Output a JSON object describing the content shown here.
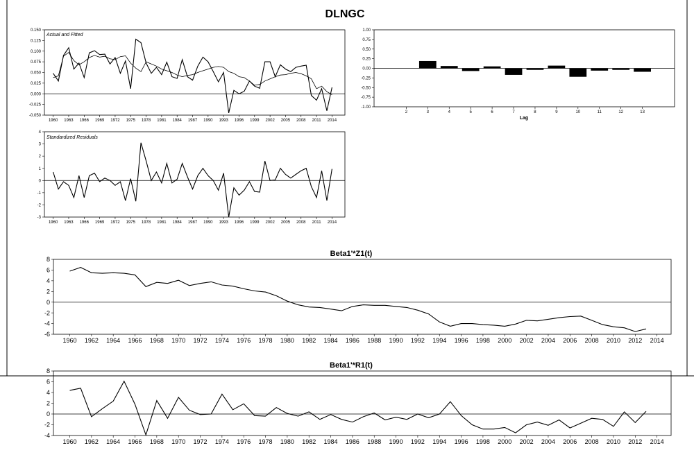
{
  "title": "DLNGC",
  "chart_data": [
    {
      "id": "actual_fitted",
      "type": "line",
      "label": "Actual and Fitted",
      "x_ticks": [
        "1960",
        "1963",
        "1966",
        "1969",
        "1972",
        "1975",
        "1978",
        "1981",
        "1984",
        "1987",
        "1990",
        "1993",
        "1996",
        "1999",
        "2002",
        "2005",
        "2008",
        "2011",
        "2014"
      ],
      "y_ticks": [
        "0.150",
        "0.125",
        "0.100",
        "0.075",
        "0.050",
        "0.025",
        "0.000",
        "-0.025",
        "-0.050"
      ],
      "ylim": [
        -0.05,
        0.15
      ],
      "xlim": [
        1958.3,
        2016.5
      ],
      "x": [
        1960,
        1961,
        1962,
        1963,
        1964,
        1965,
        1966,
        1967,
        1968,
        1969,
        1970,
        1971,
        1972,
        1973,
        1974,
        1975,
        1976,
        1977,
        1978,
        1979,
        1980,
        1981,
        1982,
        1983,
        1984,
        1985,
        1986,
        1987,
        1988,
        1989,
        1990,
        1991,
        1992,
        1993,
        1994,
        1995,
        1996,
        1997,
        1998,
        1999,
        2000,
        2001,
        2002,
        2003,
        2004,
        2005,
        2006,
        2007,
        2008,
        2009,
        2010,
        2011,
        2012,
        2013,
        2014
      ],
      "series": [
        {
          "values": [
            0.048,
            0.03,
            0.09,
            0.108,
            0.058,
            0.072,
            0.038,
            0.096,
            0.101,
            0.092,
            0.093,
            0.07,
            0.085,
            0.048,
            0.077,
            0.012,
            0.128,
            0.12,
            0.072,
            0.048,
            0.062,
            0.045,
            0.074,
            0.04,
            0.036,
            0.08,
            0.04,
            0.032,
            0.065,
            0.086,
            0.075,
            0.052,
            0.028,
            0.05,
            -0.045,
            0.008,
            0.0,
            0.006,
            0.03,
            0.018,
            0.013,
            0.075,
            0.075,
            0.04,
            0.068,
            0.058,
            0.052,
            0.062,
            0.065,
            0.067,
            -0.004,
            -0.015,
            0.012,
            -0.04,
            0.015
          ]
        },
        {
          "values": [
            0.038,
            0.042,
            0.088,
            0.097,
            0.078,
            0.068,
            0.075,
            0.085,
            0.09,
            0.086,
            0.088,
            0.082,
            0.08,
            0.087,
            0.089,
            0.072,
            0.06,
            0.052,
            0.075,
            0.07,
            0.065,
            0.058,
            0.054,
            0.05,
            0.044,
            0.04,
            0.043,
            0.045,
            0.05,
            0.054,
            0.058,
            0.062,
            0.064,
            0.062,
            0.052,
            0.048,
            0.04,
            0.038,
            0.03,
            0.02,
            0.022,
            0.03,
            0.035,
            0.04,
            0.044,
            0.045,
            0.048,
            0.05,
            0.047,
            0.042,
            0.035,
            0.012,
            0.018,
            0.005,
            -0.002
          ]
        }
      ]
    },
    {
      "id": "std_resid",
      "type": "line",
      "label": "Standardized Residuals",
      "x_ticks": [
        "1960",
        "1963",
        "1966",
        "1969",
        "1972",
        "1975",
        "1978",
        "1981",
        "1984",
        "1987",
        "1990",
        "1993",
        "1996",
        "1999",
        "2002",
        "2005",
        "2008",
        "2011",
        "2014"
      ],
      "y_ticks": [
        "4",
        "3",
        "2",
        "1",
        "0",
        "-1",
        "-2",
        "-3"
      ],
      "ylim": [
        -3,
        4
      ],
      "xlim": [
        1958.3,
        2016.5
      ],
      "x": [
        1960,
        1961,
        1962,
        1963,
        1964,
        1965,
        1966,
        1967,
        1968,
        1969,
        1970,
        1971,
        1972,
        1973,
        1974,
        1975,
        1976,
        1977,
        1978,
        1979,
        1980,
        1981,
        1982,
        1983,
        1984,
        1985,
        1986,
        1987,
        1988,
        1989,
        1990,
        1991,
        1992,
        1993,
        1994,
        1995,
        1996,
        1997,
        1998,
        1999,
        2000,
        2001,
        2002,
        2003,
        2004,
        2005,
        2006,
        2007,
        2008,
        2009,
        2010,
        2011,
        2012,
        2013,
        2014
      ],
      "values": [
        0.7,
        -0.7,
        -0.1,
        -0.4,
        -1.4,
        0.4,
        -1.4,
        0.4,
        0.6,
        -0.1,
        0.2,
        0.0,
        -0.4,
        -0.1,
        -1.65,
        0.15,
        -1.7,
        3.1,
        1.6,
        0.0,
        0.7,
        -0.2,
        1.4,
        -0.2,
        0.1,
        1.4,
        0.3,
        -0.7,
        0.4,
        1.0,
        0.4,
        0.0,
        -0.8,
        0.6,
        -3.0,
        -0.6,
        -1.2,
        -0.8,
        -0.1,
        -0.9,
        -0.95,
        1.6,
        0.0,
        0.05,
        1.0,
        0.5,
        0.2,
        0.5,
        0.8,
        1.0,
        -0.5,
        -1.4,
        0.8,
        -1.65,
        0.95
      ]
    },
    {
      "id": "acf",
      "type": "bar",
      "xlabel": "Lag",
      "categories": [
        "2",
        "3",
        "4",
        "5",
        "6",
        "7",
        "8",
        "9",
        "10",
        "11",
        "12",
        "13"
      ],
      "values": [
        0.0,
        0.19,
        0.06,
        -0.07,
        0.05,
        -0.17,
        -0.04,
        0.07,
        -0.22,
        -0.06,
        -0.04,
        -0.09
      ],
      "y_ticks": [
        "1.00",
        "0.75",
        "0.50",
        "0.25",
        "0.00",
        "-0.25",
        "-0.50",
        "-0.75",
        "-1.00"
      ],
      "ylim": [
        -1.0,
        1.0
      ]
    },
    {
      "id": "beta_z",
      "type": "line",
      "title": "Beta1'*Z1(t)",
      "x_ticks": [
        "1960",
        "1962",
        "1964",
        "1966",
        "1968",
        "1970",
        "1972",
        "1974",
        "1976",
        "1978",
        "1980",
        "1982",
        "1984",
        "1986",
        "1988",
        "1990",
        "1992",
        "1994",
        "1996",
        "1998",
        "2000",
        "2002",
        "2004",
        "2006",
        "2008",
        "2010",
        "2012",
        "2014"
      ],
      "y_ticks": [
        "8",
        "6",
        "4",
        "2",
        "0",
        "-2",
        "-4",
        "-6"
      ],
      "ylim": [
        -6,
        8
      ],
      "xlim": [
        1958.5,
        2015.3
      ],
      "x": [
        1960,
        1961,
        1962,
        1963,
        1964,
        1965,
        1966,
        1967,
        1968,
        1969,
        1970,
        1971,
        1972,
        1973,
        1974,
        1975,
        1976,
        1977,
        1978,
        1979,
        1980,
        1981,
        1982,
        1983,
        1984,
        1985,
        1986,
        1987,
        1988,
        1989,
        1990,
        1991,
        1992,
        1993,
        1994,
        1995,
        1996,
        1997,
        1998,
        1999,
        2000,
        2001,
        2002,
        2003,
        2004,
        2005,
        2006,
        2007,
        2008,
        2009,
        2010,
        2011,
        2012,
        2013
      ],
      "values": [
        5.8,
        6.5,
        5.5,
        5.4,
        5.5,
        5.4,
        5.1,
        2.9,
        3.7,
        3.5,
        4.1,
        3.1,
        3.5,
        3.8,
        3.2,
        3.0,
        2.5,
        2.1,
        1.9,
        1.2,
        0.2,
        -0.5,
        -0.9,
        -1.0,
        -1.3,
        -1.6,
        -0.8,
        -0.5,
        -0.6,
        -0.6,
        -0.8,
        -1.0,
        -1.5,
        -2.2,
        -3.7,
        -4.5,
        -4.0,
        -4.0,
        -4.2,
        -4.3,
        -4.5,
        -4.1,
        -3.4,
        -3.5,
        -3.2,
        -2.9,
        -2.7,
        -2.6,
        -3.4,
        -4.2,
        -4.6,
        -4.8,
        -5.5,
        -5.0
      ]
    },
    {
      "id": "beta_r",
      "type": "line",
      "title": "Beta1'*R1(t)",
      "x_ticks": [
        "1960",
        "1962",
        "1964",
        "1966",
        "1968",
        "1970",
        "1972",
        "1974",
        "1976",
        "1978",
        "1980",
        "1982",
        "1984",
        "1986",
        "1988",
        "1990",
        "1992",
        "1994",
        "1996",
        "1998",
        "2000",
        "2002",
        "2004",
        "2006",
        "2008",
        "2010",
        "2012",
        "2014"
      ],
      "y_ticks": [
        "8",
        "6",
        "4",
        "2",
        "0",
        "-2",
        "-4"
      ],
      "ylim": [
        -4,
        8
      ],
      "xlim": [
        1958.5,
        2015.3
      ],
      "x": [
        1960,
        1961,
        1962,
        1963,
        1964,
        1965,
        1966,
        1967,
        1968,
        1969,
        1970,
        1971,
        1972,
        1973,
        1974,
        1975,
        1976,
        1977,
        1978,
        1979,
        1980,
        1981,
        1982,
        1983,
        1984,
        1985,
        1986,
        1987,
        1988,
        1989,
        1990,
        1991,
        1992,
        1993,
        1994,
        1995,
        1996,
        1997,
        1998,
        1999,
        2000,
        2001,
        2002,
        2003,
        2004,
        2005,
        2006,
        2007,
        2008,
        2009,
        2010,
        2011,
        2012,
        2013
      ],
      "values": [
        4.4,
        4.8,
        -0.5,
        1.0,
        2.4,
        6.1,
        1.8,
        -3.9,
        2.5,
        -0.8,
        3.1,
        0.7,
        -0.1,
        0.0,
        3.7,
        0.8,
        1.9,
        -0.3,
        -0.4,
        1.2,
        0.1,
        -0.4,
        0.4,
        -1.0,
        -0.1,
        -1.0,
        -1.5,
        -0.5,
        0.2,
        -1.1,
        -0.6,
        -1.0,
        0.0,
        -0.7,
        0.0,
        2.3,
        -0.3,
        -2.0,
        -2.8,
        -2.8,
        -2.5,
        -3.5,
        -2.0,
        -1.5,
        -2.1,
        -1.1,
        -2.6,
        -1.7,
        -0.8,
        -1.0,
        -2.3,
        0.4,
        -1.6,
        0.5
      ]
    }
  ]
}
